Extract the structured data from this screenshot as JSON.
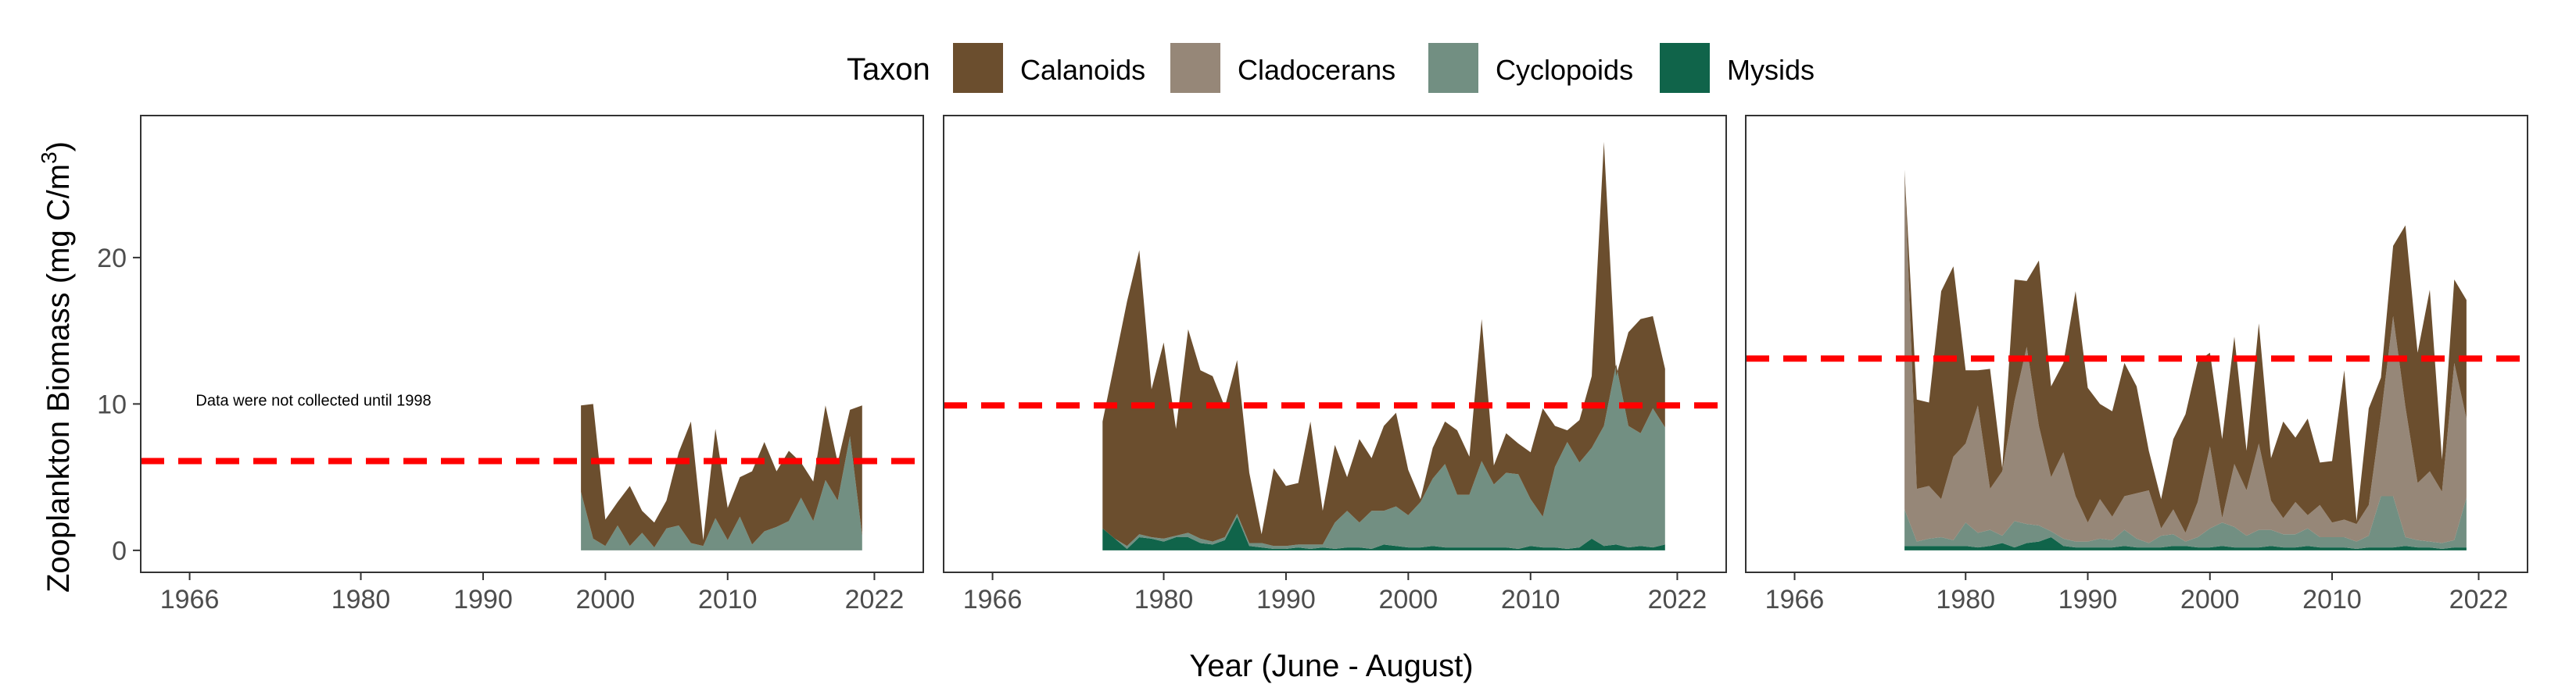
{
  "chart_data": {
    "type": "area",
    "stacked": true,
    "ylabel_main": "Zooplankton Biomass (mg C/m",
    "ylabel_sup": "3",
    "ylabel_tail": ")",
    "xlabel": "Year (June - August)",
    "xticks": [
      1966,
      1980,
      1990,
      2000,
      2010,
      2022
    ],
    "yticks": [
      0,
      10,
      20
    ],
    "xlim": [
      1962,
      2026
    ],
    "ylim": [
      -1.5,
      29.7
    ],
    "grid": false,
    "legend": {
      "position": "top",
      "title": "Taxon",
      "entries": [
        {
          "name": "Calanoids",
          "color": "#6b4e2e"
        },
        {
          "name": "Cladocerans",
          "color": "#968778"
        },
        {
          "name": "Cyclopoids",
          "color": "#728f82"
        },
        {
          "name": "Mysids",
          "color": "#10644a"
        }
      ]
    },
    "panels": [
      {
        "id": "panel-1",
        "reference_line": 6.1,
        "reference_color": "#ff0000",
        "annotation": "Data were not collected until 1998",
        "years": [
          1998,
          1999,
          2000,
          2001,
          2002,
          2003,
          2004,
          2005,
          2006,
          2007,
          2008,
          2009,
          2010,
          2011,
          2012,
          2013,
          2014,
          2015,
          2016,
          2017,
          2018,
          2019,
          2020,
          2021
        ],
        "series": {
          "Mysids": [
            0,
            0,
            0,
            0,
            0,
            0,
            0,
            0,
            0,
            0,
            0,
            0,
            0,
            0,
            0,
            0,
            0,
            0,
            0,
            0,
            0,
            0,
            0,
            0
          ],
          "Cyclopoids": [
            4.0,
            0.8,
            0.3,
            1.7,
            0.3,
            1.2,
            0.2,
            1.5,
            1.7,
            0.5,
            0.3,
            2.2,
            0.7,
            2.3,
            0.4,
            1.3,
            1.6,
            2.0,
            3.6,
            2.0,
            4.8,
            3.4,
            7.8,
            1.0
          ],
          "Cladocerans": [
            0,
            0,
            0,
            0,
            0,
            0,
            0,
            0,
            0,
            0,
            0,
            0,
            0,
            0,
            0,
            0,
            0,
            0,
            0,
            0,
            0,
            0,
            0,
            0
          ],
          "Calanoids": [
            5.9,
            9.2,
            1.8,
            1.6,
            4.1,
            1.5,
            1.7,
            1.9,
            5.0,
            8.3,
            0.4,
            6.1,
            2.2,
            2.7,
            5.0,
            6.1,
            3.8,
            4.8,
            2.4,
            2.7,
            5.1,
            2.6,
            1.8,
            8.9
          ]
        }
      },
      {
        "id": "panel-2",
        "reference_line": 9.9,
        "reference_color": "#ff0000",
        "annotation": "",
        "years": [
          1975,
          1976,
          1977,
          1978,
          1979,
          1980,
          1981,
          1982,
          1983,
          1984,
          1985,
          1986,
          1987,
          1988,
          1989,
          1990,
          1991,
          1992,
          1993,
          1994,
          1995,
          1996,
          1997,
          1998,
          1999,
          2000,
          2001,
          2002,
          2003,
          2004,
          2005,
          2006,
          2007,
          2008,
          2009,
          2010,
          2011,
          2012,
          2013,
          2014,
          2015,
          2016,
          2017,
          2018,
          2019,
          2020,
          2021
        ],
        "series": {
          "Mysids": [
            1.5,
            0.8,
            0.1,
            0.9,
            0.8,
            0.6,
            0.9,
            0.9,
            0.5,
            0.4,
            0.7,
            2.3,
            0.3,
            0.2,
            0.1,
            0.1,
            0.2,
            0.1,
            0.2,
            0.1,
            0.2,
            0.2,
            0.1,
            0.4,
            0.3,
            0.2,
            0.2,
            0.3,
            0.2,
            0.2,
            0.2,
            0.2,
            0.2,
            0.2,
            0.1,
            0.3,
            0.2,
            0.2,
            0.1,
            0.2,
            0.8,
            0.3,
            0.4,
            0.2,
            0.3,
            0.2,
            0.4
          ],
          "Cyclopoids": [
            0,
            0,
            0.2,
            0.2,
            0.1,
            0.2,
            0.1,
            0.3,
            0.3,
            0.2,
            0.2,
            0.2,
            0.2,
            0.3,
            0.2,
            0.2,
            0.2,
            0.3,
            0.2,
            1.8,
            2.5,
            1.7,
            2.6,
            2.3,
            2.7,
            2.2,
            3.1,
            4.6,
            5.7,
            3.6,
            3.6,
            5.9,
            4.3,
            5.1,
            5.1,
            3.2,
            2.1,
            5.5,
            7.3,
            5.8,
            6.2,
            8.2,
            12.3,
            8.3,
            7.7,
            9.5,
            8.0
          ],
          "Cladocerans": [
            0,
            0,
            0,
            0,
            0,
            0,
            0,
            0,
            0,
            0,
            0,
            0,
            0,
            0,
            0,
            0,
            0,
            0,
            0,
            0,
            0,
            0,
            0,
            0,
            0,
            0,
            0,
            0,
            0,
            0,
            0,
            0,
            0,
            0,
            0,
            0,
            0,
            0,
            0,
            0,
            0,
            0,
            0,
            0,
            0,
            0,
            0
          ],
          "Calanoids": [
            7.3,
            12.1,
            16.7,
            19.4,
            10.1,
            13.4,
            7.3,
            13.9,
            11.5,
            11.3,
            8.9,
            10.5,
            4.8,
            0.6,
            5.3,
            4.1,
            4.2,
            8.4,
            2.3,
            5.3,
            2.3,
            5.7,
            3.6,
            5.8,
            6.4,
            3.1,
            0.2,
            2.1,
            2.9,
            4.4,
            2.6,
            9.7,
            1.3,
            2.7,
            2.1,
            3.2,
            7.4,
            2.8,
            0.8,
            2.9,
            4.9,
            19.4,
            -0.8,
            6.4,
            7.8,
            6.3,
            4.0
          ]
        }
      },
      {
        "id": "panel-3",
        "reference_line": 13.1,
        "reference_color": "#ff0000",
        "annotation": "",
        "years": [
          1975,
          1976,
          1977,
          1978,
          1979,
          1980,
          1981,
          1982,
          1983,
          1984,
          1985,
          1986,
          1987,
          1988,
          1989,
          1990,
          1991,
          1992,
          1993,
          1994,
          1995,
          1996,
          1997,
          1998,
          1999,
          2000,
          2001,
          2002,
          2003,
          2004,
          2005,
          2006,
          2007,
          2008,
          2009,
          2010,
          2011,
          2012,
          2013,
          2014,
          2015,
          2016,
          2017,
          2018,
          2019,
          2020,
          2021
        ],
        "series": {
          "Mysids": [
            0.3,
            0.3,
            0.3,
            0.3,
            0.3,
            0.3,
            0.2,
            0.3,
            0.5,
            0.2,
            0.5,
            0.6,
            0.9,
            0.3,
            0.2,
            0.2,
            0.2,
            0.2,
            0.3,
            0.2,
            0.2,
            0.2,
            0.3,
            0.3,
            0.2,
            0.2,
            0.3,
            0.2,
            0.2,
            0.2,
            0.3,
            0.2,
            0.2,
            0.3,
            0.2,
            0.2,
            0.2,
            0.1,
            0.2,
            0.2,
            0.2,
            0.3,
            0.2,
            0.2,
            0.1,
            0.2,
            0.2
          ],
          "Cyclopoids": [
            2.5,
            0.3,
            0.5,
            0.6,
            0.4,
            1.6,
            1.0,
            1.1,
            0.5,
            1.8,
            1.3,
            1.1,
            0.4,
            0.5,
            0.4,
            0.4,
            0.6,
            0.5,
            1.1,
            0.6,
            0.3,
            0.8,
            0.8,
            0.3,
            0.7,
            1.3,
            1.6,
            1.4,
            0.8,
            1.2,
            1.1,
            0.9,
            0.9,
            1.2,
            0.7,
            0.7,
            0.7,
            0.5,
            0.8,
            3.5,
            3.5,
            0.6,
            0.5,
            0.4,
            0.4,
            0.5,
            3.4
          ],
          "Cladocerans": [
            23.2,
            3.6,
            3.6,
            2.6,
            5.7,
            5.4,
            8.7,
            2.8,
            4.4,
            8.2,
            12.1,
            6.8,
            3.7,
            5.9,
            3.1,
            1.3,
            2.7,
            1.6,
            2.3,
            3.1,
            3.6,
            0.5,
            1.7,
            0.6,
            2.4,
            5.6,
            0.3,
            4.3,
            3.1,
            5.9,
            2.0,
            1.1,
            2.2,
            0.9,
            2.2,
            1.0,
            1.2,
            1.2,
            2.1,
            5.5,
            12.3,
            8.9,
            3.9,
            4.8,
            3.5,
            12.1,
            5.4
          ],
          "Calanoids": [
            0,
            6.1,
            5.7,
            14.2,
            13.0,
            5.0,
            2.4,
            8.2,
            0.2,
            8.3,
            4.5,
            11.3,
            6.2,
            6.1,
            14.0,
            9.2,
            6.5,
            7.2,
            9.1,
            7.3,
            2.7,
            2.0,
            4.8,
            8.1,
            9.6,
            6.4,
            5.4,
            8.7,
            2.7,
            8.2,
            2.9,
            6.6,
            4.4,
            6.6,
            2.9,
            4.2,
            10.2,
            0.2,
            6.6,
            2.6,
            4.8,
            12.4,
            8.9,
            12.4,
            2.2,
            5.7,
            8.1
          ]
        }
      }
    ]
  }
}
